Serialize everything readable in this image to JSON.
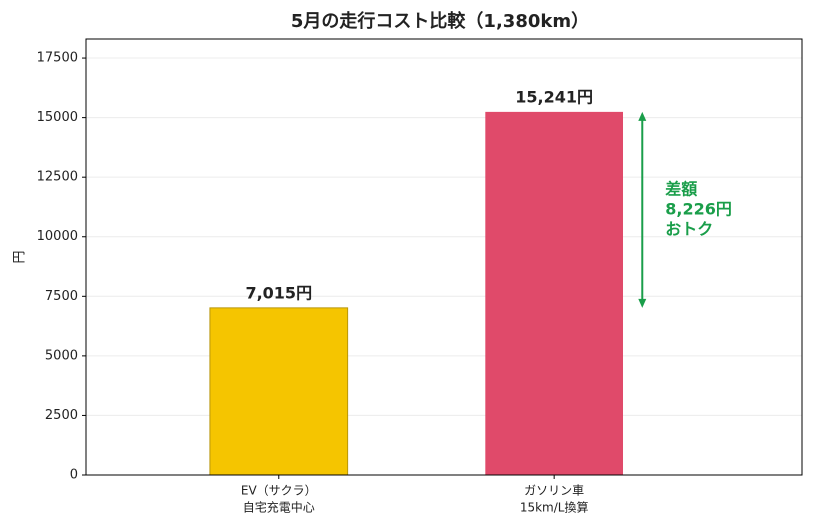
{
  "chart_data": {
    "type": "bar",
    "title": "5月の走行コスト比較（1,380km）",
    "y_label": "円",
    "categories": [
      [
        "EV（サクラ）",
        "自宅充電中心"
      ],
      [
        "ガソリン車",
        "15km/L換算"
      ]
    ],
    "values": [
      7015,
      15241
    ],
    "value_labels": [
      "7,015円",
      "15,241円"
    ],
    "colors": [
      "#f5c500",
      "#e04a6a"
    ],
    "ylim": [
      0,
      18300
    ],
    "yticks": [
      0,
      2500,
      5000,
      7500,
      10000,
      12500,
      15000,
      17500
    ],
    "grid": true,
    "annotation": {
      "lines": [
        "差額",
        "8,226円",
        "おトク"
      ],
      "color": "#1a9e4a"
    }
  }
}
